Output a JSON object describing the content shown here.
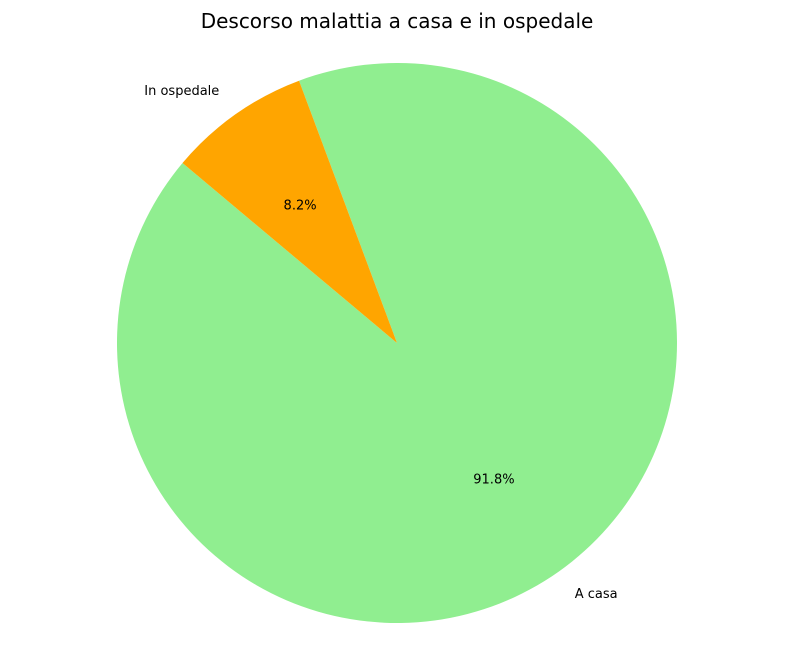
{
  "chart_data": {
    "type": "pie",
    "title": "Descorso malattia a casa e in ospedale",
    "categories": [
      "A casa",
      "In ospedale"
    ],
    "values": [
      91.8,
      8.2
    ],
    "percent_labels": [
      "91.8%",
      "8.2%"
    ],
    "colors": [
      "#90EE90",
      "#FFA500"
    ],
    "start_angle_deg": 140,
    "legend": "none",
    "grid": false
  }
}
